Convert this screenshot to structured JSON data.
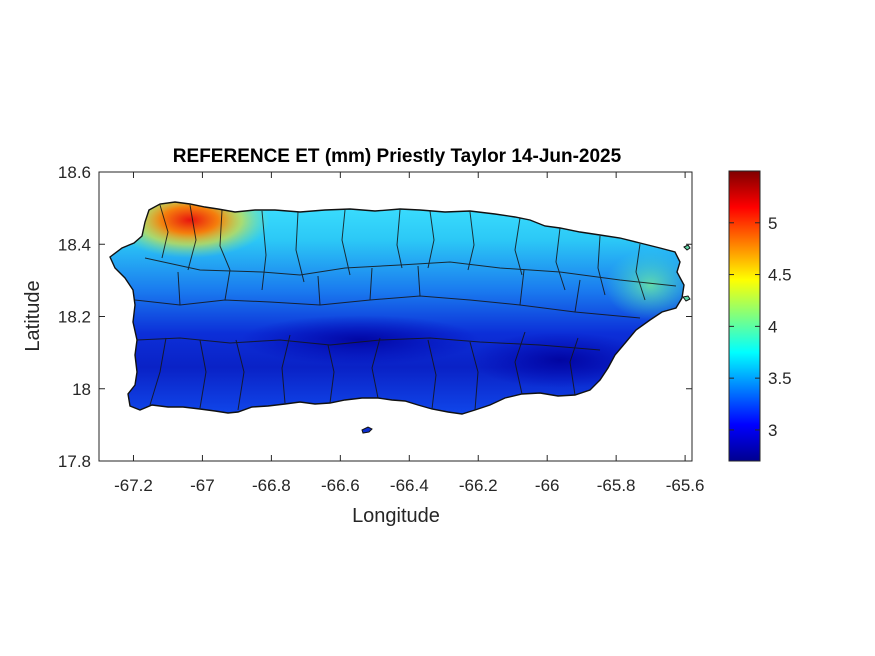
{
  "title": "REFERENCE ET (mm) Priestly Taylor 14-Jun-2025",
  "xlabel": "Longitude",
  "ylabel": "Latitude",
  "x_ticks": [
    "-67.2",
    "-67",
    "-66.8",
    "-66.6",
    "-66.4",
    "-66.2",
    "-66",
    "-65.8",
    "-65.6"
  ],
  "y_ticks": [
    "18.6",
    "18.4",
    "18.2",
    "18",
    "17.8"
  ],
  "colorbar_ticks": [
    "5",
    "4.5",
    "4",
    "3.5",
    "3"
  ],
  "chart_data": {
    "type": "heatmap",
    "title": "REFERENCE ET (mm) Priestly Taylor 14-Jun-2025",
    "xlabel": "Longitude",
    "ylabel": "Latitude",
    "xlim": [
      -67.3,
      -65.58
    ],
    "ylim": [
      17.8,
      18.6
    ],
    "x_tick_values": [
      -67.2,
      -67,
      -66.8,
      -66.6,
      -66.4,
      -66.2,
      -66,
      -65.8,
      -65.6
    ],
    "y_tick_values": [
      18.6,
      18.4,
      18.2,
      18.0,
      17.8
    ],
    "colorbar": {
      "colormap": "jet",
      "min": 2.7,
      "max": 5.5,
      "tick_values": [
        5,
        4.5,
        4,
        3.5,
        3
      ],
      "low_color": "#00008f",
      "high_color": "#800000"
    },
    "grid": false,
    "region_outline_color": "#000000"
  }
}
